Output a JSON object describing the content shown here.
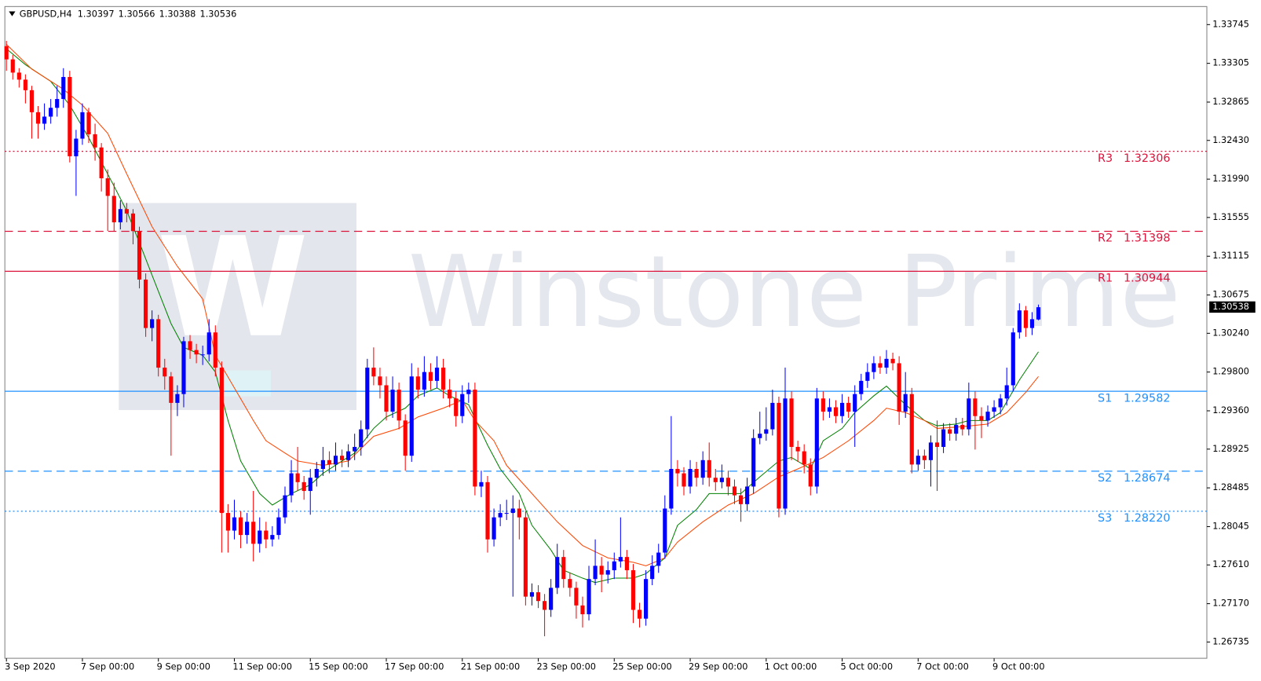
{
  "chart_data": {
    "type": "candlestick",
    "title": "GBPUSD,H4",
    "watermark": "Winstone Prime",
    "watermark_logo": "W",
    "bull_color": "#0000ff",
    "bear_color": "#ff0000",
    "xlim": [
      -0.25,
      189.6
    ],
    "ylim": [
      1.2655,
      1.3395
    ],
    "yticks": [
      1.33745,
      1.33305,
      1.32865,
      {
        "value": 1.3243,
        "label": "1.32430"
      },
      {
        "value": 1.3199,
        "label": "1.31990"
      },
      1.31555,
      1.31115,
      1.30675,
      {
        "value": 1.3024,
        "label": "1.30240"
      },
      {
        "value": 1.298,
        "label": "1.29800"
      },
      {
        "value": 1.2936,
        "label": "1.29360"
      },
      1.28925,
      1.28485,
      1.28045,
      {
        "value": 1.2761,
        "label": "1.27610"
      },
      {
        "value": 1.2717,
        "label": "1.27170"
      },
      1.26735
    ],
    "xticks": [
      {
        "value": 0,
        "label": "3 Sep 2020"
      },
      {
        "value": 12,
        "label": "7 Sep 00:00"
      },
      {
        "value": 24,
        "label": "9 Sep 00:00"
      },
      {
        "value": 36,
        "label": "11 Sep 00:00"
      },
      {
        "value": 48,
        "label": "15 Sep 00:00"
      },
      {
        "value": 60,
        "label": "17 Sep 00:00"
      },
      {
        "value": 72,
        "label": "21 Sep 00:00"
      },
      {
        "value": 84,
        "label": "23 Sep 00:00"
      },
      {
        "value": 96,
        "label": "25 Sep 00:00"
      },
      {
        "value": 108,
        "label": "29 Sep 00:00"
      },
      {
        "value": 120,
        "label": "1 Oct 00:00"
      },
      {
        "value": 132,
        "label": "5 Oct 00:00"
      },
      {
        "value": 144,
        "label": "7 Oct 00:00"
      },
      {
        "value": 156,
        "label": "9 Oct 00:00"
      }
    ],
    "current_price": 1.30538,
    "levels": [
      {
        "name": "R3",
        "value": 1.32306,
        "color": "#dc143c",
        "style": "dotted"
      },
      {
        "name": "R2",
        "value": 1.31398,
        "color": "#dc143c",
        "style": "dashed"
      },
      {
        "name": "R1",
        "value": 1.30944,
        "color": "#dc143c",
        "style": "solid"
      },
      {
        "name": "S1",
        "value": 1.29582,
        "color": "#1e90ff",
        "style": "solid"
      },
      {
        "name": "S2",
        "value": 1.28674,
        "color": "#1e90ff",
        "style": "dashed"
      },
      {
        "name": "S3",
        "value": 1.2822,
        "value_label": "1.28220",
        "color": "#1e90ff",
        "style": "dotted"
      }
    ],
    "series": [
      {
        "color": "#008000",
        "x": [
          0,
          3,
          7,
          10,
          13,
          17,
          19,
          21,
          23,
          26,
          28,
          31,
          33,
          35,
          37,
          40,
          42,
          45,
          48,
          50,
          53,
          55,
          58,
          60,
          63,
          65,
          68,
          70,
          73,
          76,
          78,
          81,
          83,
          86,
          88,
          91,
          93,
          96,
          99,
          101,
          104,
          106,
          109,
          111,
          114,
          116,
          119,
          122,
          124,
          127,
          129,
          132,
          134,
          137,
          139,
          142,
          145,
          147,
          150,
          152,
          155,
          157,
          160,
          163
        ],
        "values": [
          1.3347,
          1.3329,
          1.331,
          1.3283,
          1.3246,
          1.3191,
          1.3163,
          1.3127,
          1.309,
          1.3035,
          1.3008,
          1.2999,
          1.298,
          1.2925,
          1.2879,
          1.2842,
          1.2829,
          1.2842,
          1.2852,
          1.2865,
          1.2879,
          1.2888,
          1.2916,
          1.2929,
          1.2939,
          1.2953,
          1.2962,
          1.2953,
          1.2943,
          1.2897,
          1.287,
          1.2842,
          1.2806,
          1.2778,
          1.2755,
          1.2746,
          1.2741,
          1.2746,
          1.2746,
          1.2751,
          1.2769,
          1.2806,
          1.2824,
          1.2842,
          1.2842,
          1.2842,
          1.2861,
          1.2879,
          1.2883,
          1.287,
          1.2902,
          1.2916,
          1.2934,
          1.2953,
          1.2964,
          1.2943,
          1.2925,
          1.2919,
          1.2921,
          1.2925,
          1.2925,
          1.2934,
          1.2971,
          1.3003
        ]
      },
      {
        "color": "#ff4500",
        "x": [
          0,
          4,
          9,
          12,
          16,
          19,
          23,
          27,
          31,
          33,
          36,
          39,
          41,
          44,
          46,
          50,
          54,
          58,
          62,
          65,
          69,
          72,
          74,
          77,
          79,
          83,
          87,
          91,
          95,
          99,
          101,
          104,
          106,
          110,
          114,
          118,
          122,
          125,
          129,
          133,
          137,
          139,
          142,
          145,
          147,
          151,
          155,
          158,
          161,
          163
        ],
        "values": [
          1.3352,
          1.3324,
          1.3301,
          1.3283,
          1.3251,
          1.3205,
          1.3145,
          1.31,
          1.3063,
          1.2999,
          1.2962,
          1.2925,
          1.2902,
          1.2888,
          1.2879,
          1.2874,
          1.2879,
          1.2907,
          1.2916,
          1.2929,
          1.2939,
          1.2948,
          1.2925,
          1.2902,
          1.2874,
          1.2842,
          1.281,
          1.2783,
          1.2769,
          1.2764,
          1.276,
          1.2769,
          1.2787,
          1.281,
          1.2829,
          1.2842,
          1.2861,
          1.287,
          1.2883,
          1.2902,
          1.2925,
          1.2939,
          1.2934,
          1.2925,
          1.2916,
          1.2918,
          1.2921,
          1.2934,
          1.2957,
          1.2975
        ]
      }
    ],
    "candles": [
      [
        1.335,
        1.3356,
        1.3322,
        1.3335
      ],
      [
        1.3335,
        1.334,
        1.3312,
        1.332
      ],
      [
        1.332,
        1.3325,
        1.3303,
        1.3312
      ],
      [
        1.3312,
        1.3318,
        1.3285,
        1.33
      ],
      [
        1.33,
        1.3305,
        1.3245,
        1.3275
      ],
      [
        1.3275,
        1.3282,
        1.3245,
        1.3262
      ],
      [
        1.3262,
        1.3285,
        1.3255,
        1.327
      ],
      [
        1.327,
        1.329,
        1.3262,
        1.328
      ],
      [
        1.328,
        1.3305,
        1.327,
        1.329
      ],
      [
        1.329,
        1.3325,
        1.328,
        1.3315
      ],
      [
        1.3315,
        1.3322,
        1.3218,
        1.3225
      ],
      [
        1.3225,
        1.3255,
        1.318,
        1.3245
      ],
      [
        1.3245,
        1.3285,
        1.3238,
        1.3275
      ],
      [
        1.3275,
        1.328,
        1.324,
        1.325
      ],
      [
        1.325,
        1.3262,
        1.322,
        1.3235
      ],
      [
        1.3235,
        1.324,
        1.3185,
        1.32
      ],
      [
        1.32,
        1.321,
        1.314,
        1.318
      ],
      [
        1.318,
        1.3195,
        1.314,
        1.315
      ],
      [
        1.315,
        1.3175,
        1.3142,
        1.3165
      ],
      [
        1.3165,
        1.3172,
        1.315,
        1.316
      ],
      [
        1.316,
        1.3165,
        1.3125,
        1.314
      ],
      [
        1.314,
        1.3145,
        1.3075,
        1.3085
      ],
      [
        1.3085,
        1.3092,
        1.302,
        1.303
      ],
      [
        1.303,
        1.305,
        1.3015,
        1.304
      ],
      [
        1.304,
        1.3045,
        1.2975,
        1.2985
      ],
      [
        1.2985,
        1.2995,
        1.296,
        1.2975
      ],
      [
        1.2975,
        1.298,
        1.2885,
        1.2945
      ],
      [
        1.2945,
        1.2965,
        1.293,
        1.2955
      ],
      [
        1.2955,
        1.302,
        1.294,
        1.3015
      ],
      [
        1.3015,
        1.3022,
        1.2995,
        1.3005
      ],
      [
        1.3005,
        1.3012,
        1.299,
        1.3
      ],
      [
        1.3,
        1.301,
        1.2988,
        1.3
      ],
      [
        1.3,
        1.304,
        1.2992,
        1.3025
      ],
      [
        1.3025,
        1.3033,
        1.2975,
        1.2985
      ],
      [
        1.2985,
        1.2992,
        1.2775,
        1.282
      ],
      [
        1.282,
        1.283,
        1.2775,
        1.28
      ],
      [
        1.28,
        1.2835,
        1.279,
        1.2815
      ],
      [
        1.2815,
        1.2822,
        1.278,
        1.2795
      ],
      [
        1.2795,
        1.282,
        1.2785,
        1.281
      ],
      [
        1.281,
        1.2845,
        1.2765,
        1.2785
      ],
      [
        1.2785,
        1.2815,
        1.2775,
        1.28
      ],
      [
        1.28,
        1.281,
        1.278,
        1.279
      ],
      [
        1.279,
        1.2805,
        1.2782,
        1.2795
      ],
      [
        1.2795,
        1.2825,
        1.279,
        1.2815
      ],
      [
        1.2815,
        1.285,
        1.2808,
        1.284
      ],
      [
        1.284,
        1.288,
        1.2832,
        1.2865
      ],
      [
        1.2865,
        1.2895,
        1.2845,
        1.2855
      ],
      [
        1.2855,
        1.2862,
        1.2835,
        1.2845
      ],
      [
        1.2845,
        1.287,
        1.2818,
        1.286
      ],
      [
        1.286,
        1.2878,
        1.285,
        1.287
      ],
      [
        1.287,
        1.2895,
        1.2862,
        1.288
      ],
      [
        1.288,
        1.289,
        1.2865,
        1.2875
      ],
      [
        1.2875,
        1.29,
        1.2868,
        1.2885
      ],
      [
        1.2885,
        1.2892,
        1.2872,
        1.288
      ],
      [
        1.288,
        1.2898,
        1.2872,
        1.289
      ],
      [
        1.289,
        1.291,
        1.288,
        1.2895
      ],
      [
        1.2895,
        1.2925,
        1.2885,
        1.2915
      ],
      [
        1.2915,
        1.2995,
        1.2905,
        1.2985
      ],
      [
        1.2985,
        1.3008,
        1.2965,
        1.2975
      ],
      [
        1.2975,
        1.2985,
        1.295,
        1.2965
      ],
      [
        1.2965,
        1.2975,
        1.2925,
        1.2935
      ],
      [
        1.2935,
        1.2975,
        1.2928,
        1.296
      ],
      [
        1.296,
        1.2968,
        1.2915,
        1.2925
      ],
      [
        1.2925,
        1.2932,
        1.2868,
        1.2885
      ],
      [
        1.2885,
        1.299,
        1.2878,
        1.2975
      ],
      [
        1.2975,
        1.2985,
        1.295,
        1.296
      ],
      [
        1.296,
        1.2998,
        1.2952,
        1.298
      ],
      [
        1.298,
        1.299,
        1.296,
        1.297
      ],
      [
        1.297,
        1.2998,
        1.2962,
        1.2985
      ],
      [
        1.2985,
        1.2995,
        1.295,
        1.296
      ],
      [
        1.296,
        1.2972,
        1.294,
        1.295
      ],
      [
        1.295,
        1.2958,
        1.2918,
        1.293
      ],
      [
        1.293,
        1.2965,
        1.2922,
        1.2955
      ],
      [
        1.2955,
        1.2968,
        1.2945,
        1.296
      ],
      [
        1.296,
        1.2968,
        1.284,
        1.285
      ],
      [
        1.285,
        1.2868,
        1.2838,
        1.2855
      ],
      [
        1.2855,
        1.2862,
        1.2775,
        1.279
      ],
      [
        1.279,
        1.2825,
        1.2782,
        1.2815
      ],
      [
        1.2815,
        1.283,
        1.2805,
        1.282
      ],
      [
        1.282,
        1.2835,
        1.2812,
        1.282
      ],
      [
        1.282,
        1.284,
        1.2725,
        1.2825
      ],
      [
        1.2825,
        1.2835,
        1.279,
        1.2815
      ],
      [
        1.2815,
        1.2822,
        1.2715,
        1.2725
      ],
      [
        1.2725,
        1.274,
        1.2715,
        1.273
      ],
      [
        1.273,
        1.2738,
        1.2712,
        1.272
      ],
      [
        1.272,
        1.2728,
        1.268,
        1.271
      ],
      [
        1.271,
        1.2745,
        1.2702,
        1.2735
      ],
      [
        1.2735,
        1.2785,
        1.2728,
        1.277
      ],
      [
        1.277,
        1.2778,
        1.2735,
        1.2745
      ],
      [
        1.2745,
        1.2752,
        1.2725,
        1.2735
      ],
      [
        1.2735,
        1.2742,
        1.27,
        1.2715
      ],
      [
        1.2715,
        1.2725,
        1.269,
        1.2705
      ],
      [
        1.2705,
        1.276,
        1.2698,
        1.2745
      ],
      [
        1.2745,
        1.279,
        1.2738,
        1.276
      ],
      [
        1.276,
        1.277,
        1.273,
        1.275
      ],
      [
        1.275,
        1.2765,
        1.274,
        1.2755
      ],
      [
        1.2755,
        1.2775,
        1.2745,
        1.2765
      ],
      [
        1.2765,
        1.2815,
        1.2758,
        1.277
      ],
      [
        1.277,
        1.2778,
        1.2745,
        1.2755
      ],
      [
        1.2755,
        1.2762,
        1.2695,
        1.271
      ],
      [
        1.271,
        1.2718,
        1.269,
        1.27
      ],
      [
        1.27,
        1.2755,
        1.2692,
        1.2745
      ],
      [
        1.2745,
        1.2772,
        1.2738,
        1.276
      ],
      [
        1.276,
        1.2785,
        1.2752,
        1.2775
      ],
      [
        1.2775,
        1.284,
        1.2768,
        1.2825
      ],
      [
        1.2825,
        1.293,
        1.2818,
        1.287
      ],
      [
        1.287,
        1.288,
        1.285,
        1.2865
      ],
      [
        1.2865,
        1.2872,
        1.284,
        1.285
      ],
      [
        1.285,
        1.288,
        1.2842,
        1.287
      ],
      [
        1.287,
        1.2878,
        1.285,
        1.286
      ],
      [
        1.286,
        1.289,
        1.2852,
        1.288
      ],
      [
        1.288,
        1.29,
        1.285,
        1.286
      ],
      [
        1.286,
        1.287,
        1.2845,
        1.2855
      ],
      [
        1.2855,
        1.2875,
        1.2848,
        1.286
      ],
      [
        1.286,
        1.2868,
        1.284,
        1.285
      ],
      [
        1.285,
        1.2858,
        1.283,
        1.284
      ],
      [
        1.284,
        1.2848,
        1.281,
        1.283
      ],
      [
        1.283,
        1.286,
        1.2822,
        1.285
      ],
      [
        1.285,
        1.2915,
        1.2842,
        1.2905
      ],
      [
        1.2905,
        1.2935,
        1.2898,
        1.291
      ],
      [
        1.291,
        1.294,
        1.2902,
        1.2915
      ],
      [
        1.2915,
        1.296,
        1.2908,
        1.2945
      ],
      [
        1.2945,
        1.2952,
        1.2815,
        1.2825
      ],
      [
        1.2825,
        1.2985,
        1.2818,
        1.295
      ],
      [
        1.295,
        1.2958,
        1.288,
        1.2895
      ],
      [
        1.2895,
        1.2902,
        1.2878,
        1.289
      ],
      [
        1.289,
        1.2898,
        1.2865,
        1.2875
      ],
      [
        1.2875,
        1.2882,
        1.284,
        1.285
      ],
      [
        1.285,
        1.2962,
        1.2842,
        1.295
      ],
      [
        1.295,
        1.2958,
        1.2925,
        1.2935
      ],
      [
        1.2935,
        1.295,
        1.2928,
        1.294
      ],
      [
        1.294,
        1.2948,
        1.2922,
        1.293
      ],
      [
        1.293,
        1.2955,
        1.2922,
        1.2945
      ],
      [
        1.2945,
        1.2952,
        1.2928,
        1.2935
      ],
      [
        1.2935,
        1.2965,
        1.2895,
        1.2955
      ],
      [
        1.2955,
        1.2978,
        1.2948,
        1.297
      ],
      [
        1.297,
        1.299,
        1.2962,
        1.298
      ],
      [
        1.298,
        1.2998,
        1.2972,
        1.299
      ],
      [
        1.299,
        1.2998,
        1.2978,
        1.2985
      ],
      [
        1.2985,
        1.3005,
        1.2978,
        1.2995
      ],
      [
        1.2995,
        1.3002,
        1.2982,
        1.299
      ],
      [
        1.299,
        1.2998,
        1.292,
        1.2935
      ],
      [
        1.2935,
        1.298,
        1.2928,
        1.2955
      ],
      [
        1.2955,
        1.2962,
        1.2865,
        1.2875
      ],
      [
        1.2875,
        1.2892,
        1.2868,
        1.2885
      ],
      [
        1.2885,
        1.2892,
        1.287,
        1.288
      ],
      [
        1.288,
        1.2908,
        1.285,
        1.29
      ],
      [
        1.29,
        1.2925,
        1.2845,
        1.2895
      ],
      [
        1.2895,
        1.2922,
        1.2888,
        1.2915
      ],
      [
        1.2915,
        1.2922,
        1.2902,
        1.291
      ],
      [
        1.291,
        1.2928,
        1.2902,
        1.292
      ],
      [
        1.292,
        1.2928,
        1.2908,
        1.2915
      ],
      [
        1.2915,
        1.2968,
        1.2908,
        1.295
      ],
      [
        1.295,
        1.2958,
        1.2892,
        1.293
      ],
      [
        1.293,
        1.294,
        1.2905,
        1.2925
      ],
      [
        1.2925,
        1.2942,
        1.2918,
        1.2935
      ],
      [
        1.2935,
        1.2948,
        1.2928,
        1.294
      ],
      [
        1.294,
        1.2955,
        1.2932,
        1.295
      ],
      [
        1.295,
        1.2985,
        1.2942,
        1.2965
      ],
      [
        1.2965,
        1.303,
        1.2958,
        1.3025
      ],
      [
        1.3025,
        1.3058,
        1.3018,
        1.305
      ],
      [
        1.305,
        1.3055,
        1.302,
        1.303
      ],
      [
        1.303,
        1.3048,
        1.3022,
        1.304
      ],
      [
        1.30397,
        1.30566,
        1.30388,
        1.30536
      ]
    ]
  }
}
